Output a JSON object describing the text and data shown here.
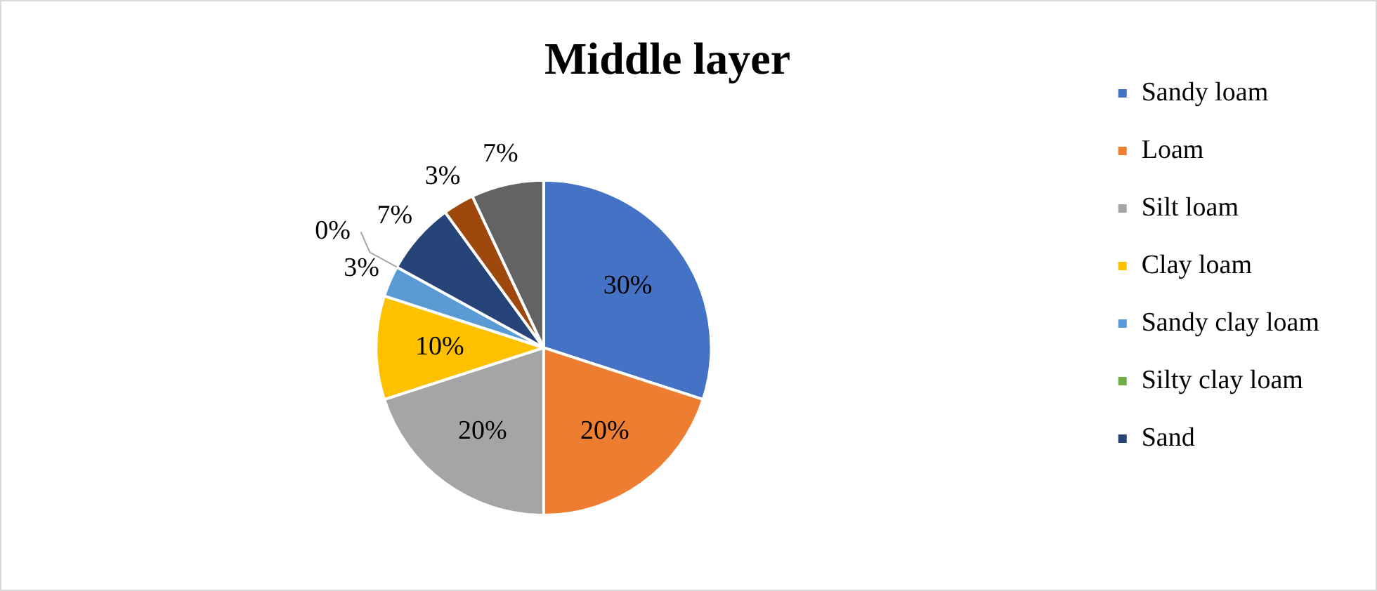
{
  "chart_data": {
    "type": "pie",
    "title": "Middle layer",
    "categories": [
      "Sandy loam",
      "Loam",
      "Silt loam",
      "Clay loam",
      "Sandy clay loam",
      "Silty clay loam",
      "Sand",
      null,
      null
    ],
    "values": [
      30,
      20,
      20,
      10,
      3,
      0,
      7,
      3,
      7
    ],
    "colors": [
      "#4472c4",
      "#ed7d31",
      "#a5a5a5",
      "#ffc000",
      "#5b9bd5",
      "#70ad47",
      "#264478",
      "#9e480e",
      "#636363"
    ],
    "value_labels": [
      "30%",
      "20%",
      "20%",
      "10%",
      "3%",
      "0%",
      "7%",
      "3%",
      "7%"
    ],
    "legend": "right"
  }
}
